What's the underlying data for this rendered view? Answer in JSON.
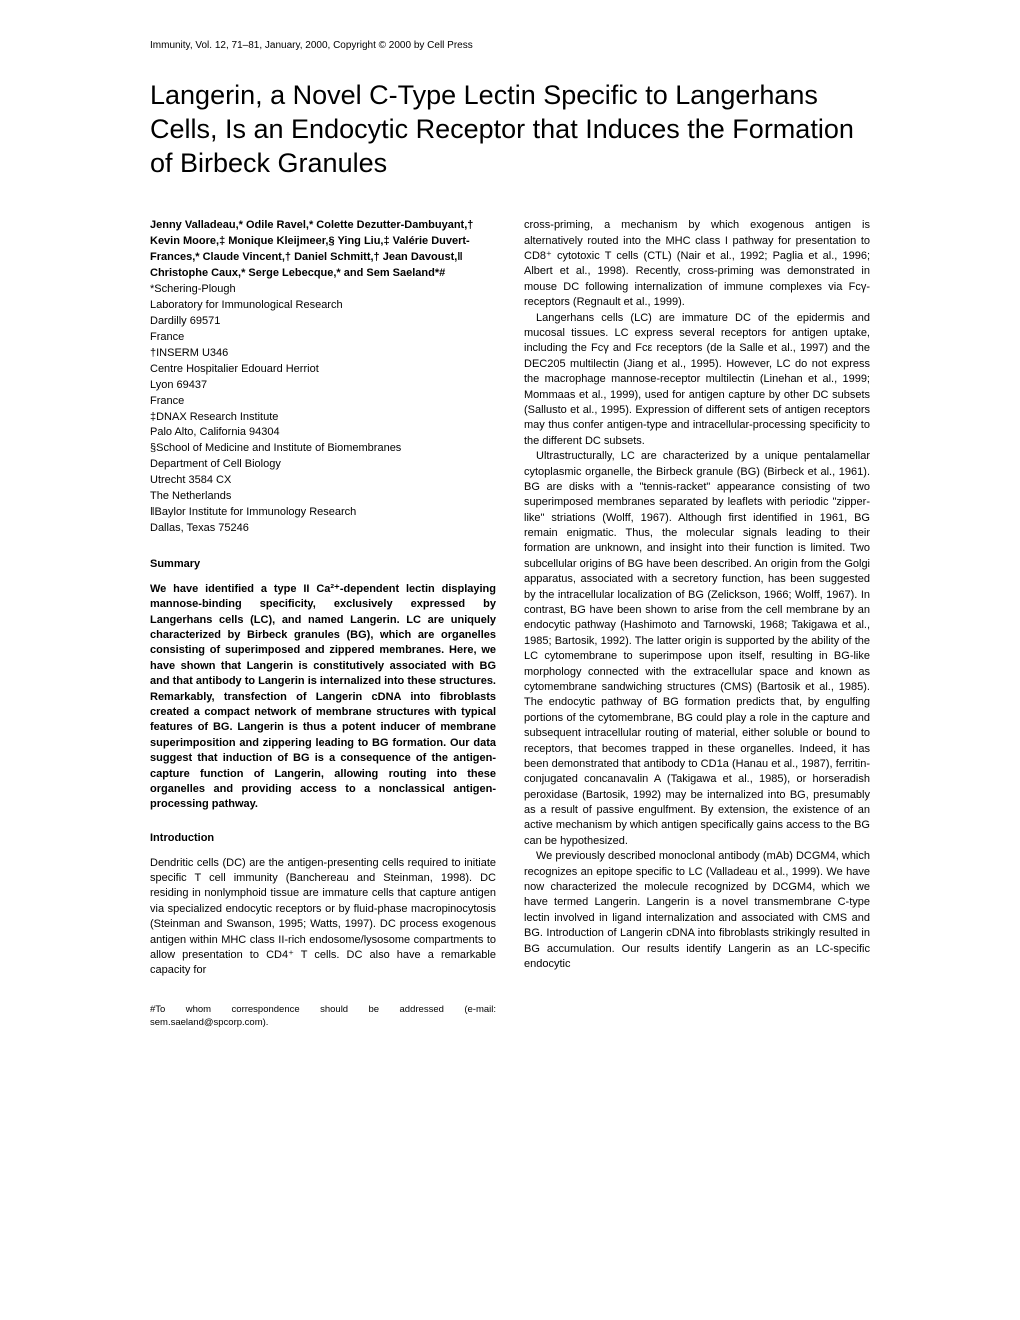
{
  "journal": "Immunity, Vol. 12, 71–81, January, 2000, Copyright © 2000 by Cell Press",
  "title": "Langerin, a Novel C-Type Lectin Specific to Langerhans Cells, Is an Endocytic Receptor that Induces the Formation of Birbeck Granules",
  "authors": "Jenny Valladeau,* Odile Ravel,* Colette Dezutter-Dambuyant,† Kevin Moore,‡ Monique Kleijmeer,§ Ying Liu,‡ Valérie Duvert-Frances,* Claude Vincent,† Daniel Schmitt,† Jean Davoust,‖ Christophe Caux,* Serge Lebecque,* and Sem Saeland*#",
  "affiliations": "*Schering-Plough\nLaboratory for Immunological Research\nDardilly 69571\nFrance\n†INSERM U346\nCentre Hospitalier Edouard Herriot\nLyon 69437\nFrance\n‡DNAX Research Institute\nPalo Alto, California 94304\n§School of Medicine and Institute of Biomembranes\nDepartment of Cell Biology\nUtrecht 3584 CX\nThe Netherlands\n‖Baylor Institute for Immunology Research\nDallas, Texas 75246",
  "summary_heading": "Summary",
  "summary": "We have identified a type II Ca²⁺-dependent lectin displaying mannose-binding specificity, exclusively expressed by Langerhans cells (LC), and named Langerin. LC are uniquely characterized by Birbeck granules (BG), which are organelles consisting of superimposed and zippered membranes. Here, we have shown that Langerin is constitutively associated with BG and that antibody to Langerin is internalized into these structures. Remarkably, transfection of Langerin cDNA into fibroblasts created a compact network of membrane structures with typical features of BG. Langerin is thus a potent inducer of membrane superimposition and zippering leading to BG formation. Our data suggest that induction of BG is a consequence of the antigen-capture function of Langerin, allowing routing into these organelles and providing access to a nonclassical antigen-processing pathway.",
  "intro_heading": "Introduction",
  "intro_p1": "Dendritic cells (DC) are the antigen-presenting cells required to initiate specific T cell immunity (Banchereau and Steinman, 1998). DC residing in nonlymphoid tissue are immature cells that capture antigen via specialized endocytic receptors or by fluid-phase macropinocytosis (Steinman and Swanson, 1995; Watts, 1997). DC process exogenous antigen within MHC class II-rich endosome/lysosome compartments to allow presentation to CD4⁺ T cells. DC also have a remarkable capacity for",
  "footnote": "#To whom correspondence should be addressed (e-mail: sem.saeland@spcorp.com).",
  "right_p1": "cross-priming, a mechanism by which exogenous antigen is alternatively routed into the MHC class I pathway for presentation to CD8⁺ cytotoxic T cells (CTL) (Nair et al., 1992; Paglia et al., 1996; Albert et al., 1998). Recently, cross-priming was demonstrated in mouse DC following internalization of immune complexes via Fcγ-receptors (Regnault et al., 1999).",
  "right_p2": "Langerhans cells (LC) are immature DC of the epidermis and mucosal tissues. LC express several receptors for antigen uptake, including the Fcγ and Fcε receptors (de la Salle et al., 1997) and the DEC205 multilectin (Jiang et al., 1995). However, LC do not express the macrophage mannose-receptor multilectin (Linehan et al., 1999; Mommaas et al., 1999), used for antigen capture by other DC subsets (Sallusto et al., 1995). Expression of different sets of antigen receptors may thus confer antigen-type and intracellular-processing specificity to the different DC subsets.",
  "right_p3": "Ultrastructurally, LC are characterized by a unique pentalamellar cytoplasmic organelle, the Birbeck granule (BG) (Birbeck et al., 1961). BG are disks with a \"tennis-racket\" appearance consisting of two superimposed membranes separated by leaflets with periodic \"zipper-like\" striations (Wolff, 1967). Although first identified in 1961, BG remain enigmatic. Thus, the molecular signals leading to their formation are unknown, and insight into their function is limited. Two subcellular origins of BG have been described. An origin from the Golgi apparatus, associated with a secretory function, has been suggested by the intracellular localization of BG (Zelickson, 1966; Wolff, 1967). In contrast, BG have been shown to arise from the cell membrane by an endocytic pathway (Hashimoto and Tarnowski, 1968; Takigawa et al., 1985; Bartosik, 1992). The latter origin is supported by the ability of the LC cytomembrane to superimpose upon itself, resulting in BG-like morphology connected with the extracellular space and known as cytomembrane sandwiching structures (CMS) (Bartosik et al., 1985). The endocytic pathway of BG formation predicts that, by engulfing portions of the cytomembrane, BG could play a role in the capture and subsequent intracellular routing of material, either soluble or bound to receptors, that becomes trapped in these organelles. Indeed, it has been demonstrated that antibody to CD1a (Hanau et al., 1987), ferritin-conjugated concanavalin A (Takigawa et al., 1985), or horseradish peroxidase (Bartosik, 1992) may be internalized into BG, presumably as a result of passive engulfment. By extension, the existence of an active mechanism by which antigen specifically gains access to the BG can be hypothesized.",
  "right_p4": "We previously described monoclonal antibody (mAb) DCGM4, which recognizes an epitope specific to LC (Valladeau et al., 1999). We have now characterized the molecule recognized by DCGM4, which we have termed Langerin. Langerin is a novel transmembrane C-type lectin involved in ligand internalization and associated with CMS and BG. Introduction of Langerin cDNA into fibroblasts strikingly resulted in BG accumulation. Our results identify Langerin as an LC-specific endocytic"
}
